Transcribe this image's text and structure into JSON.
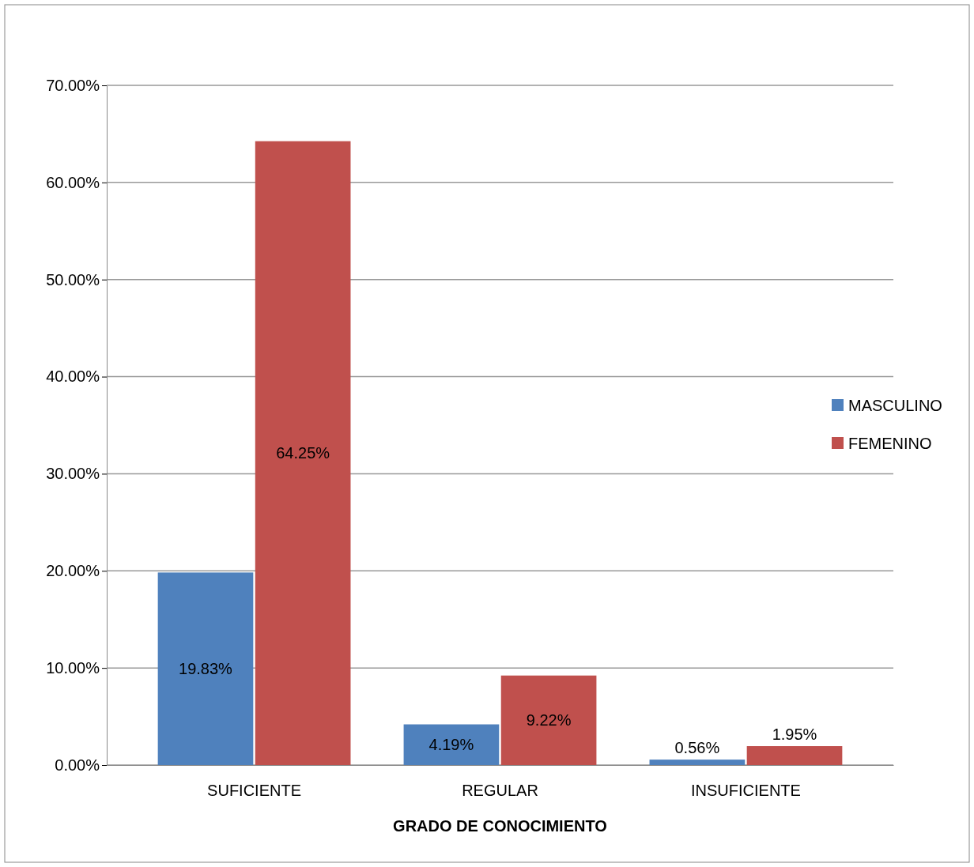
{
  "chart_data": {
    "type": "bar",
    "xlabel": "GRADO DE CONOCIMIENTO",
    "categories": [
      "SUFICIENTE",
      "REGULAR",
      "INSUFICIENTE"
    ],
    "series": [
      {
        "name": "MASCULINO",
        "color": "#4f81bd",
        "values": [
          19.83,
          4.19,
          0.56
        ],
        "value_labels": [
          "19.83%",
          "4.19%",
          "0.56%"
        ]
      },
      {
        "name": "FEMENINO",
        "color": "#c0504d",
        "values": [
          64.25,
          9.22,
          1.95
        ],
        "value_labels": [
          "64.25%",
          "9.22%",
          "1.95%"
        ]
      }
    ],
    "ylim": [
      0,
      70
    ],
    "yticks": [
      {
        "value": 0,
        "label": "0.00%"
      },
      {
        "value": 10,
        "label": "10.00%"
      },
      {
        "value": 20,
        "label": "20.00%"
      },
      {
        "value": 30,
        "label": "30.00%"
      },
      {
        "value": 40,
        "label": "40.00%"
      },
      {
        "value": 50,
        "label": "50.00%"
      },
      {
        "value": 60,
        "label": "60.00%"
      },
      {
        "value": 70,
        "label": "70.00%"
      }
    ],
    "grid": "y",
    "legend": "right"
  }
}
